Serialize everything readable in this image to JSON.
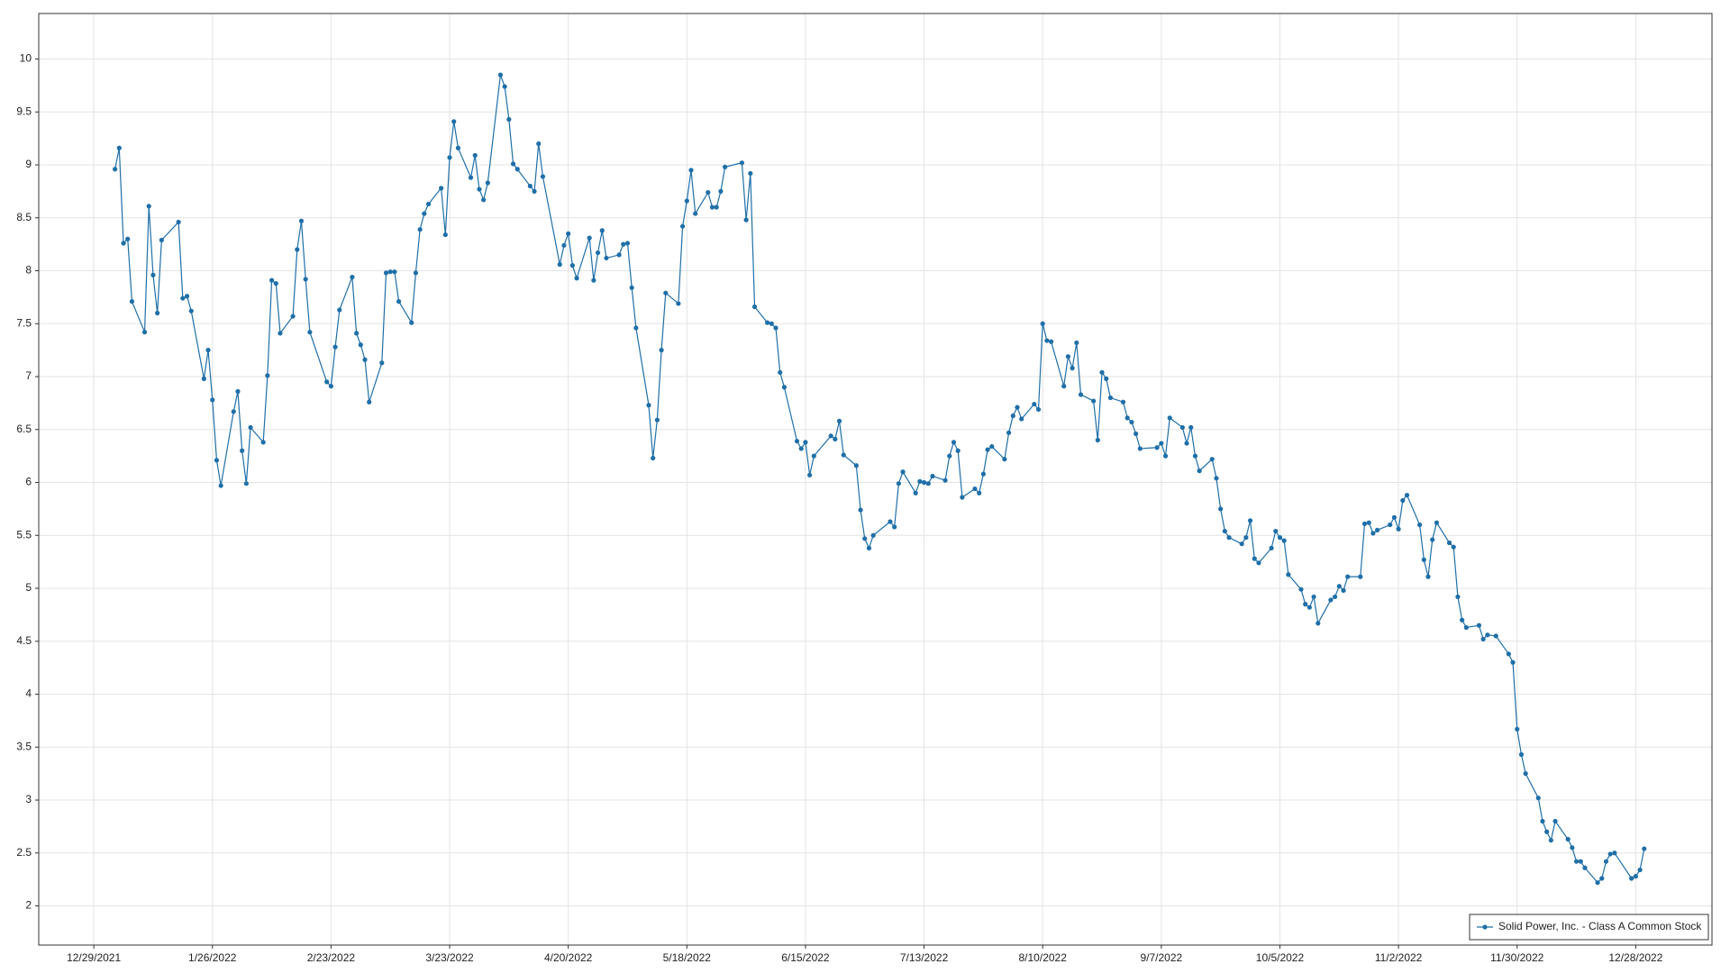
{
  "chart_data": {
    "type": "line",
    "x": [
      "1/3/2022",
      "1/4/2022",
      "1/5/2022",
      "1/6/2022",
      "1/7/2022",
      "1/10/2022",
      "1/11/2022",
      "1/12/2022",
      "1/13/2022",
      "1/14/2022",
      "1/18/2022",
      "1/19/2022",
      "1/20/2022",
      "1/21/2022",
      "1/24/2022",
      "1/25/2022",
      "1/26/2022",
      "1/27/2022",
      "1/28/2022",
      "1/31/2022",
      "2/1/2022",
      "2/2/2022",
      "2/3/2022",
      "2/4/2022",
      "2/7/2022",
      "2/8/2022",
      "2/9/2022",
      "2/10/2022",
      "2/11/2022",
      "2/14/2022",
      "2/15/2022",
      "2/16/2022",
      "2/17/2022",
      "2/18/2022",
      "2/22/2022",
      "2/23/2022",
      "2/24/2022",
      "2/25/2022",
      "2/28/2022",
      "3/1/2022",
      "3/2/2022",
      "3/3/2022",
      "3/4/2022",
      "3/7/2022",
      "3/8/2022",
      "3/9/2022",
      "3/10/2022",
      "3/11/2022",
      "3/14/2022",
      "3/15/2022",
      "3/16/2022",
      "3/17/2022",
      "3/18/2022",
      "3/21/2022",
      "3/22/2022",
      "3/23/2022",
      "3/24/2022",
      "3/25/2022",
      "3/28/2022",
      "3/29/2022",
      "3/30/2022",
      "3/31/2022",
      "4/1/2022",
      "4/4/2022",
      "4/5/2022",
      "4/6/2022",
      "4/7/2022",
      "4/8/2022",
      "4/11/2022",
      "4/12/2022",
      "4/13/2022",
      "4/14/2022",
      "4/18/2022",
      "4/19/2022",
      "4/20/2022",
      "4/21/2022",
      "4/22/2022",
      "4/25/2022",
      "4/26/2022",
      "4/27/2022",
      "4/28/2022",
      "4/29/2022",
      "5/2/2022",
      "5/3/2022",
      "5/4/2022",
      "5/5/2022",
      "5/6/2022",
      "5/9/2022",
      "5/10/2022",
      "5/11/2022",
      "5/12/2022",
      "5/13/2022",
      "5/16/2022",
      "5/17/2022",
      "5/18/2022",
      "5/19/2022",
      "5/20/2022",
      "5/23/2022",
      "5/24/2022",
      "5/25/2022",
      "5/26/2022",
      "5/27/2022",
      "5/31/2022",
      "6/1/2022",
      "6/2/2022",
      "6/3/2022",
      "6/6/2022",
      "6/7/2022",
      "6/8/2022",
      "6/9/2022",
      "6/10/2022",
      "6/13/2022",
      "6/14/2022",
      "6/15/2022",
      "6/16/2022",
      "6/17/2022",
      "6/21/2022",
      "6/22/2022",
      "6/23/2022",
      "6/24/2022",
      "6/27/2022",
      "6/28/2022",
      "6/29/2022",
      "6/30/2022",
      "7/1/2022",
      "7/5/2022",
      "7/6/2022",
      "7/7/2022",
      "7/8/2022",
      "7/11/2022",
      "7/12/2022",
      "7/13/2022",
      "7/14/2022",
      "7/15/2022",
      "7/18/2022",
      "7/19/2022",
      "7/20/2022",
      "7/21/2022",
      "7/22/2022",
      "7/25/2022",
      "7/26/2022",
      "7/27/2022",
      "7/28/2022",
      "7/29/2022",
      "8/1/2022",
      "8/2/2022",
      "8/3/2022",
      "8/4/2022",
      "8/5/2022",
      "8/8/2022",
      "8/9/2022",
      "8/10/2022",
      "8/11/2022",
      "8/12/2022",
      "8/15/2022",
      "8/16/2022",
      "8/17/2022",
      "8/18/2022",
      "8/19/2022",
      "8/22/2022",
      "8/23/2022",
      "8/24/2022",
      "8/25/2022",
      "8/26/2022",
      "8/29/2022",
      "8/30/2022",
      "8/31/2022",
      "9/1/2022",
      "9/2/2022",
      "9/6/2022",
      "9/7/2022",
      "9/8/2022",
      "9/9/2022",
      "9/12/2022",
      "9/13/2022",
      "9/14/2022",
      "9/15/2022",
      "9/16/2022",
      "9/19/2022",
      "9/20/2022",
      "9/21/2022",
      "9/22/2022",
      "9/23/2022",
      "9/26/2022",
      "9/27/2022",
      "9/28/2022",
      "9/29/2022",
      "9/30/2022",
      "10/3/2022",
      "10/4/2022",
      "10/5/2022",
      "10/6/2022",
      "10/7/2022",
      "10/10/2022",
      "10/11/2022",
      "10/12/2022",
      "10/13/2022",
      "10/14/2022",
      "10/17/2022",
      "10/18/2022",
      "10/19/2022",
      "10/20/2022",
      "10/21/2022",
      "10/24/2022",
      "10/25/2022",
      "10/26/2022",
      "10/27/2022",
      "10/28/2022",
      "10/31/2022",
      "11/1/2022",
      "11/2/2022",
      "11/3/2022",
      "11/4/2022",
      "11/7/2022",
      "11/8/2022",
      "11/9/2022",
      "11/10/2022",
      "11/11/2022",
      "11/14/2022",
      "11/15/2022",
      "11/16/2022",
      "11/17/2022",
      "11/18/2022",
      "11/21/2022",
      "11/22/2022",
      "11/23/2022",
      "11/25/2022",
      "11/28/2022",
      "11/29/2022",
      "11/30/2022",
      "12/1/2022",
      "12/2/2022",
      "12/5/2022",
      "12/6/2022",
      "12/7/2022",
      "12/8/2022",
      "12/9/2022",
      "12/12/2022",
      "12/13/2022",
      "12/14/2022",
      "12/15/2022",
      "12/16/2022",
      "12/19/2022",
      "12/20/2022",
      "12/21/2022",
      "12/22/2022",
      "12/23/2022",
      "12/27/2022",
      "12/28/2022",
      "12/29/2022",
      "12/30/2022"
    ],
    "series": [
      {
        "name": "Solid Power, Inc. - Class A Common Stock",
        "color": "#1f6fa8",
        "values": [
          8.96,
          9.16,
          8.26,
          8.3,
          7.71,
          7.42,
          8.61,
          7.96,
          7.6,
          8.29,
          8.46,
          7.74,
          7.76,
          7.62,
          6.98,
          7.25,
          6.78,
          6.21,
          5.97,
          6.67,
          6.86,
          6.3,
          5.99,
          6.52,
          6.38,
          7.01,
          7.91,
          7.88,
          7.41,
          7.57,
          8.2,
          8.47,
          7.92,
          7.42,
          6.95,
          6.91,
          7.28,
          7.63,
          7.94,
          7.41,
          7.3,
          7.16,
          6.76,
          7.13,
          7.98,
          7.99,
          7.99,
          7.71,
          7.51,
          7.98,
          8.39,
          8.54,
          8.63,
          8.78,
          8.34,
          9.07,
          9.41,
          9.16,
          8.88,
          9.09,
          8.77,
          8.67,
          8.83,
          9.85,
          9.74,
          9.43,
          9.01,
          8.96,
          8.8,
          8.75,
          9.2,
          8.89,
          8.06,
          8.24,
          8.35,
          8.05,
          7.93,
          8.31,
          7.91,
          8.17,
          8.38,
          8.12,
          8.15,
          8.25,
          8.26,
          7.84,
          7.46,
          6.73,
          6.23,
          6.59,
          7.25,
          7.79,
          7.69,
          8.42,
          8.66,
          8.95,
          8.54,
          8.74,
          8.6,
          8.6,
          8.75,
          8.98,
          9.02,
          8.48,
          8.92,
          7.66,
          7.51,
          7.5,
          7.46,
          7.04,
          6.9,
          6.39,
          6.32,
          6.38,
          6.07,
          6.25,
          6.44,
          6.41,
          6.58,
          6.26,
          6.16,
          5.74,
          5.47,
          5.38,
          5.5,
          5.63,
          5.58,
          5.99,
          6.1,
          5.9,
          6.01,
          6.0,
          5.99,
          6.06,
          6.02,
          6.25,
          6.38,
          6.3,
          5.86,
          5.94,
          5.9,
          6.08,
          6.31,
          6.34,
          6.22,
          6.47,
          6.63,
          6.71,
          6.6,
          6.74,
          6.69,
          7.5,
          7.34,
          7.33,
          6.91,
          7.19,
          7.08,
          7.32,
          6.83,
          6.77,
          6.4,
          7.04,
          6.98,
          6.8,
          6.76,
          6.61,
          6.57,
          6.46,
          6.32,
          6.33,
          6.37,
          6.25,
          6.61,
          6.52,
          6.37,
          6.52,
          6.25,
          6.11,
          6.22,
          6.04,
          5.75,
          5.54,
          5.48,
          5.42,
          5.48,
          5.64,
          5.28,
          5.24,
          5.38,
          5.54,
          5.48,
          5.45,
          5.13,
          4.99,
          4.85,
          4.82,
          4.92,
          4.67,
          4.89,
          4.92,
          5.02,
          4.98,
          5.11,
          5.11,
          5.61,
          5.62,
          5.52,
          5.55,
          5.6,
          5.67,
          5.56,
          5.83,
          5.88,
          5.6,
          5.27,
          5.11,
          5.46,
          5.62,
          5.43,
          5.39,
          4.92,
          4.7,
          4.63,
          4.65,
          4.52,
          4.56,
          4.55,
          4.38,
          4.3,
          3.67,
          3.43,
          3.25,
          3.02,
          2.8,
          2.7,
          2.62,
          2.8,
          2.63,
          2.55,
          2.42,
          2.42,
          2.36,
          2.22,
          2.26,
          2.42,
          2.49,
          2.5,
          2.26,
          2.28,
          2.34,
          2.54
        ]
      }
    ],
    "xlim": [
      "12/16/2021",
      "1/15/2023"
    ],
    "xticks": [
      "12/29/2021",
      "1/26/2022",
      "2/23/2022",
      "3/23/2022",
      "4/20/2022",
      "5/18/2022",
      "6/15/2022",
      "7/13/2022",
      "8/10/2022",
      "9/7/2022",
      "10/5/2022",
      "11/2/2022",
      "11/30/2022",
      "12/28/2022"
    ],
    "ylim": [
      1.63,
      10.43
    ],
    "yticks": [
      2,
      2.5,
      3,
      3.5,
      4,
      4.5,
      5,
      5.5,
      6,
      6.5,
      7,
      7.5,
      8,
      8.5,
      9,
      9.5,
      10
    ],
    "grid": true,
    "legend": "lower right",
    "markers": true
  }
}
